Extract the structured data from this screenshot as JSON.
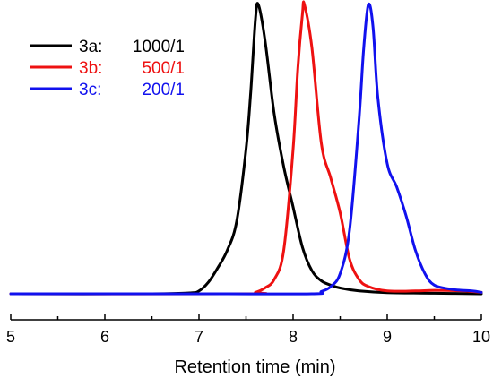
{
  "chart_data": {
    "type": "line",
    "title": "",
    "xlabel": "Retention time (min)",
    "ylabel": "",
    "xlim": [
      5,
      10
    ],
    "ylim": [
      0,
      1.05
    ],
    "x_ticks": [
      5,
      6,
      7,
      8,
      9,
      10
    ],
    "x_tick_labels": [
      "5",
      "6",
      "7",
      "8",
      "9",
      "10"
    ],
    "y_axis_visible": false,
    "grid": false,
    "legend_position": "top-left",
    "series": [
      {
        "name": "3a:",
        "label_value": "1000/1",
        "color": "#000000",
        "points": [
          [
            5.0,
            0.0
          ],
          [
            6.5,
            0.0
          ],
          [
            6.9,
            0.003
          ],
          [
            7.0,
            0.01
          ],
          [
            7.1,
            0.04
          ],
          [
            7.2,
            0.09
          ],
          [
            7.3,
            0.15
          ],
          [
            7.4,
            0.25
          ],
          [
            7.5,
            0.5
          ],
          [
            7.55,
            0.7
          ],
          [
            7.6,
            0.95
          ],
          [
            7.63,
            1.0
          ],
          [
            7.7,
            0.88
          ],
          [
            7.8,
            0.62
          ],
          [
            7.9,
            0.44
          ],
          [
            8.0,
            0.3
          ],
          [
            8.1,
            0.16
          ],
          [
            8.2,
            0.08
          ],
          [
            8.3,
            0.045
          ],
          [
            8.4,
            0.03
          ],
          [
            8.5,
            0.02
          ],
          [
            8.7,
            0.01
          ],
          [
            9.0,
            0.004
          ],
          [
            9.5,
            0.002
          ],
          [
            10.0,
            0.0
          ]
        ]
      },
      {
        "name": "3b:",
        "label_value": "500/1",
        "color": "#ee1111",
        "points": [
          [
            5.0,
            0.0
          ],
          [
            7.5,
            0.0
          ],
          [
            7.6,
            0.005
          ],
          [
            7.7,
            0.02
          ],
          [
            7.8,
            0.05
          ],
          [
            7.9,
            0.15
          ],
          [
            8.0,
            0.5
          ],
          [
            8.05,
            0.78
          ],
          [
            8.1,
            0.97
          ],
          [
            8.12,
            1.0
          ],
          [
            8.2,
            0.85
          ],
          [
            8.3,
            0.52
          ],
          [
            8.4,
            0.4
          ],
          [
            8.5,
            0.28
          ],
          [
            8.6,
            0.12
          ],
          [
            8.7,
            0.05
          ],
          [
            8.8,
            0.025
          ],
          [
            9.0,
            0.01
          ],
          [
            9.3,
            0.01
          ],
          [
            9.5,
            0.012
          ],
          [
            9.8,
            0.01
          ],
          [
            10.0,
            0.005
          ]
        ]
      },
      {
        "name": "3c:",
        "label_value": "200/1",
        "color": "#1111ee",
        "points": [
          [
            5.0,
            0.0
          ],
          [
            7.0,
            0.0
          ],
          [
            8.2,
            0.0
          ],
          [
            8.3,
            0.008
          ],
          [
            8.4,
            0.025
          ],
          [
            8.5,
            0.07
          ],
          [
            8.6,
            0.22
          ],
          [
            8.7,
            0.6
          ],
          [
            8.75,
            0.85
          ],
          [
            8.8,
            1.0
          ],
          [
            8.85,
            0.92
          ],
          [
            8.9,
            0.68
          ],
          [
            9.0,
            0.45
          ],
          [
            9.1,
            0.37
          ],
          [
            9.2,
            0.27
          ],
          [
            9.3,
            0.15
          ],
          [
            9.4,
            0.07
          ],
          [
            9.5,
            0.03
          ],
          [
            9.7,
            0.015
          ],
          [
            9.9,
            0.01
          ],
          [
            10.0,
            0.005
          ]
        ]
      }
    ]
  }
}
